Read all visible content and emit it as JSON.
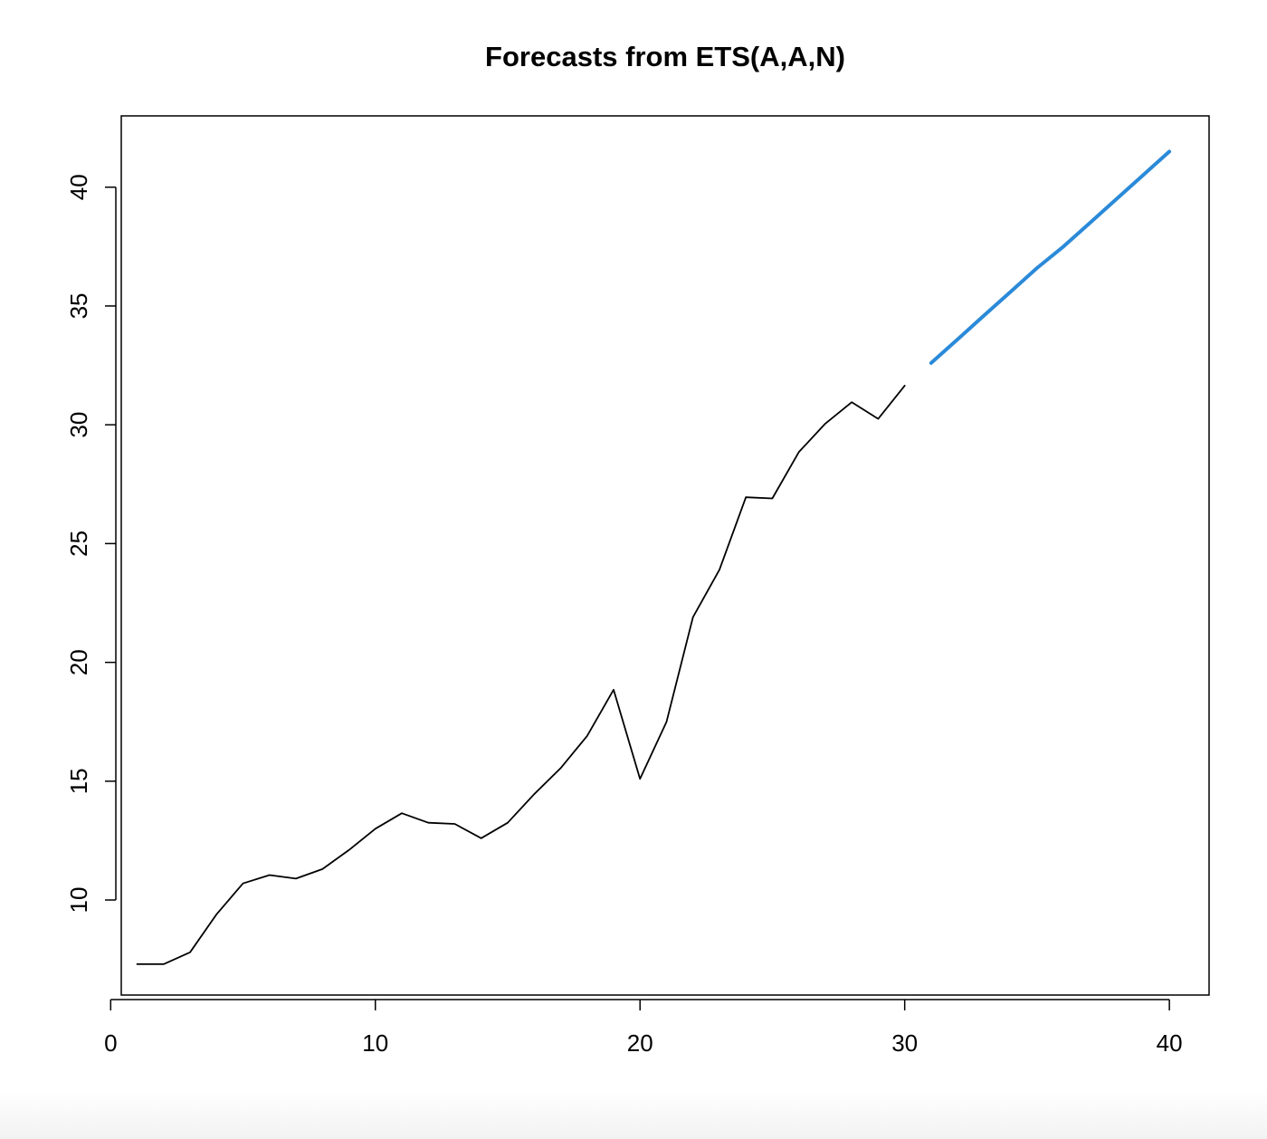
{
  "chart_data": {
    "type": "line",
    "title": "Forecasts from ETS(A,A,N)",
    "xlabel": "",
    "ylabel": "",
    "xlim": [
      0.4,
      41.5
    ],
    "ylim": [
      6.0,
      43.0
    ],
    "xticks": [
      0,
      10,
      20,
      30,
      40
    ],
    "yticks": [
      10,
      15,
      20,
      25,
      30,
      35,
      40
    ],
    "grid": false,
    "legend": "none",
    "colors": {
      "observed": "#000000",
      "forecast": "#2b8ad8"
    },
    "series": [
      {
        "role": "observed",
        "x": [
          1,
          2,
          3,
          4,
          5,
          6,
          7,
          8,
          9,
          10,
          11,
          12,
          13,
          14,
          15,
          16,
          17,
          18,
          19,
          20,
          21,
          22,
          23,
          24,
          25,
          26,
          27,
          28,
          29,
          30
        ],
        "values": [
          7.3,
          7.3,
          7.8,
          9.4,
          10.7,
          11.05,
          10.9,
          11.3,
          12.1,
          13.0,
          13.65,
          13.25,
          13.2,
          12.6,
          13.25,
          14.45,
          15.55,
          16.9,
          18.85,
          15.1,
          17.5,
          21.9,
          23.9,
          26.95,
          26.9,
          28.85,
          30.05,
          30.95,
          30.25,
          31.65
        ]
      },
      {
        "role": "forecast",
        "x": [
          31,
          32,
          33,
          34,
          35,
          36,
          37,
          38,
          39,
          40
        ],
        "values": [
          32.6,
          33.6,
          34.6,
          35.6,
          36.6,
          37.5,
          38.5,
          39.5,
          40.5,
          41.5
        ]
      }
    ]
  }
}
